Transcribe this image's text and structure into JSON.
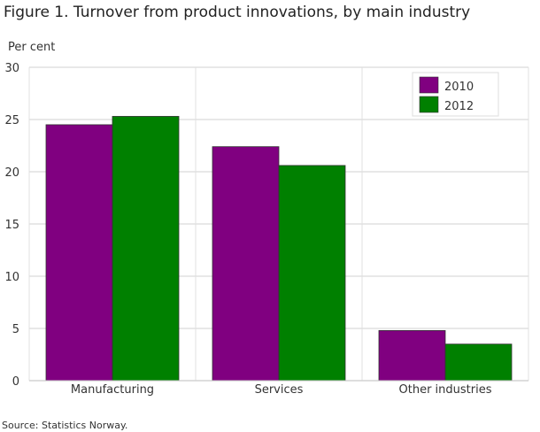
{
  "chart_data": {
    "type": "bar",
    "title": "Figure 1. Turnover from product innovations, by main industry",
    "ylabel": "Per cent",
    "xlabel": "",
    "categories": [
      "Manufacturing",
      "Services",
      "Other industries"
    ],
    "series": [
      {
        "name": "2010",
        "values": [
          24.5,
          22.4,
          4.8
        ],
        "color": "#800080"
      },
      {
        "name": "2012",
        "values": [
          25.3,
          20.6,
          3.5
        ],
        "color": "#008000"
      }
    ],
    "ylim": [
      0,
      30
    ],
    "yticks": [
      0,
      5,
      10,
      15,
      20,
      25,
      30
    ],
    "grid": true,
    "legend_position": "top-right"
  },
  "source": "Source: Statistics Norway."
}
